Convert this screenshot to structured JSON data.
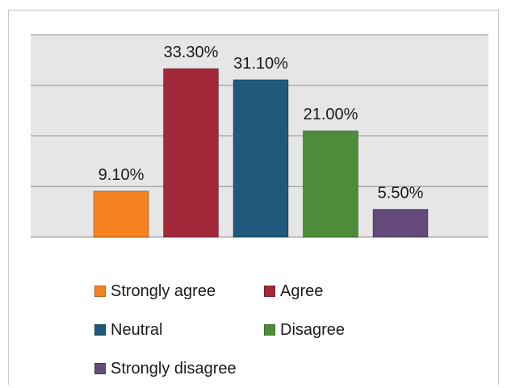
{
  "chart_data": {
    "type": "bar",
    "categories": [
      "Strongly agree",
      "Agree",
      "Neutral",
      "Disagree",
      "Strongly disagree"
    ],
    "values": [
      9.1,
      33.3,
      31.1,
      21.0,
      5.5
    ],
    "data_labels": [
      "9.10%",
      "33.30%",
      "31.10%",
      "21.00%",
      "5.50%"
    ],
    "colors": [
      "#f58220",
      "#a3293a",
      "#1f5a7c",
      "#4f8c3a",
      "#634a7a"
    ],
    "ylim": [
      0,
      40
    ],
    "grid": true,
    "legend_position": "bottom",
    "plot_background": "#e6e6e6"
  }
}
